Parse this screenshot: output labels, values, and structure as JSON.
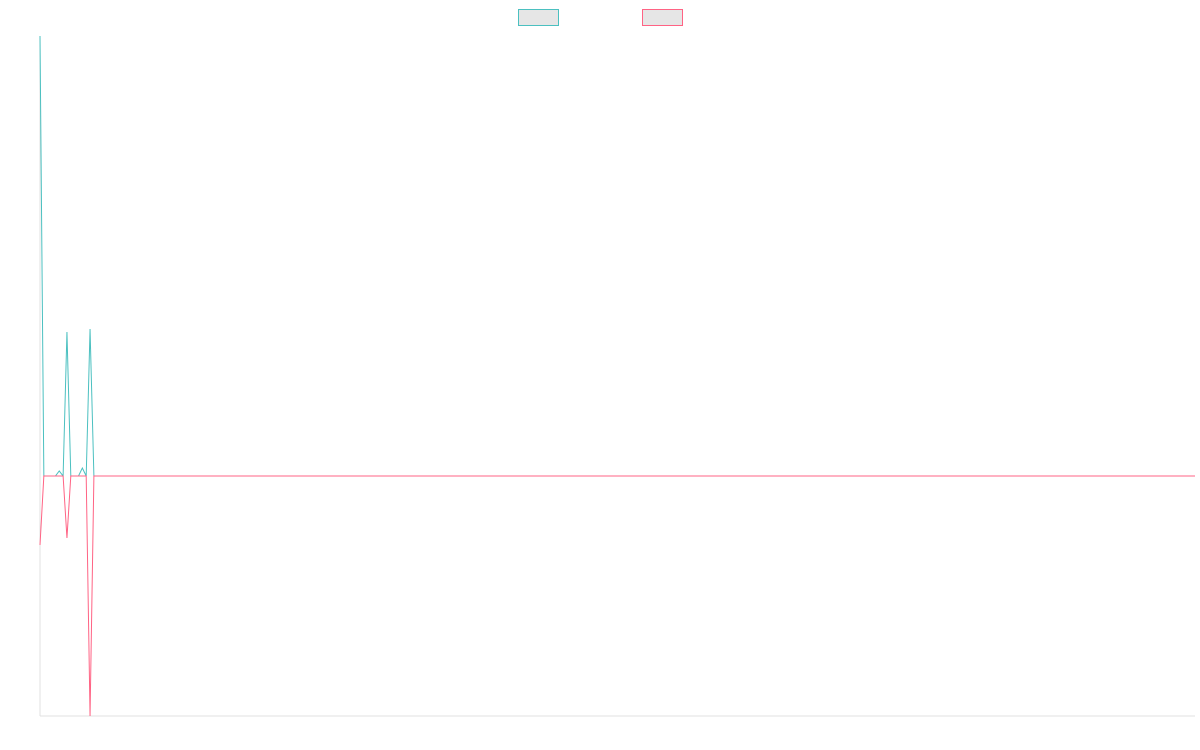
{
  "chart_data": {
    "type": "line",
    "x": [
      0,
      1,
      4,
      5,
      6,
      7,
      8,
      10,
      11,
      12,
      13,
      14,
      300
    ],
    "series": [
      {
        "color": "#4bc0c0",
        "values": [
          440,
          0,
          0,
          5,
          0,
          144,
          0,
          0,
          8,
          0,
          147,
          0,
          0
        ]
      },
      {
        "color": "#ff6384",
        "values": [
          -69,
          0,
          0,
          0,
          0,
          -62,
          0,
          0,
          0,
          0,
          -240,
          0,
          0
        ]
      }
    ],
    "xlim": [
      0,
      300
    ],
    "ylim": [
      -240,
      440
    ],
    "legend": "top"
  }
}
